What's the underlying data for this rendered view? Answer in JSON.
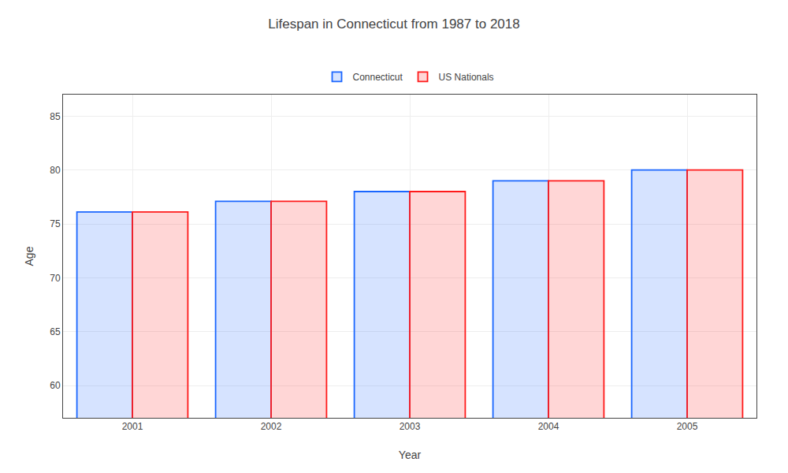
{
  "chart_data": {
    "type": "bar",
    "title": "Lifespan in Connecticut from 1987 to 2018",
    "xlabel": "Year",
    "ylabel": "Age",
    "categories": [
      "2001",
      "2002",
      "2003",
      "2004",
      "2005"
    ],
    "series": [
      {
        "name": "Connecticut",
        "color": "#1a66ff",
        "values": [
          76.1,
          77.1,
          78.0,
          79.0,
          80.0
        ]
      },
      {
        "name": "US Nationals",
        "color": "#ff1a1a",
        "values": [
          76.1,
          77.1,
          78.0,
          79.0,
          80.0
        ]
      }
    ],
    "ylim": [
      57,
      87
    ],
    "yticks": [
      60,
      65,
      70,
      75,
      80,
      85
    ],
    "grid": true,
    "legend": "top"
  }
}
